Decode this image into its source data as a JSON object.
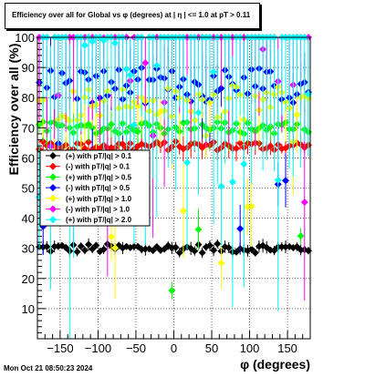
{
  "chart_data": {
    "type": "scatter",
    "title": "Efficiency over all for Global vs φ (degrees) at | η | <= 1.0 at pT > 0.11",
    "xlabel": "φ (degrees)",
    "ylabel": "Efficiency over all (%)",
    "xlim": [
      -180,
      180
    ],
    "ylim": [
      0,
      100
    ],
    "x_ticks": [
      -150,
      -100,
      -50,
      0,
      50,
      100,
      150
    ],
    "y_ticks": [
      10,
      20,
      30,
      40,
      50,
      60,
      70,
      80,
      90,
      100
    ],
    "grid": true,
    "legend_position": "center-left",
    "series": [
      {
        "name": "(+) with pT/|q| > 0.1",
        "color": "#000000",
        "level": 30,
        "spread": 1.5,
        "err": 1.5,
        "scatter": 0,
        "marker": "diamond"
      },
      {
        "name": "(-) with pT/|q| > 0.1",
        "color": "#ff0000",
        "level": 64,
        "spread": 1.5,
        "err": 3,
        "scatter": 0,
        "marker": "diamond"
      },
      {
        "name": "(+) with pT/|q| > 0.5",
        "color": "#00ff00",
        "level": 70,
        "spread": 2,
        "err": 5,
        "scatter": 0.05,
        "marker": "diamond"
      },
      {
        "name": "(-) with pT/|q| > 0.5",
        "color": "#0000ff",
        "level": 84,
        "spread": 6,
        "err": 10,
        "scatter": 0.15,
        "marker": "diamond"
      },
      {
        "name": "(+) with pT/|q| > 1.0",
        "color": "#ffff00",
        "level": 78,
        "spread": 6,
        "err": 12,
        "scatter": 0.2,
        "marker": "diamond"
      },
      {
        "name": "(-) with pT/|q| > 1.0",
        "color": "#ff00ff",
        "level": 100,
        "spread": 0,
        "err": 25,
        "scatter": 0.25,
        "marker": "diamond"
      },
      {
        "name": "(+) with pT/|q| > 2.0",
        "color": "#00ffff",
        "level": 100,
        "spread": 0,
        "err": 35,
        "scatter": 0.3,
        "marker": "diamond"
      }
    ]
  },
  "timestamp": "Mon Oct 21 08:50:23 2024"
}
